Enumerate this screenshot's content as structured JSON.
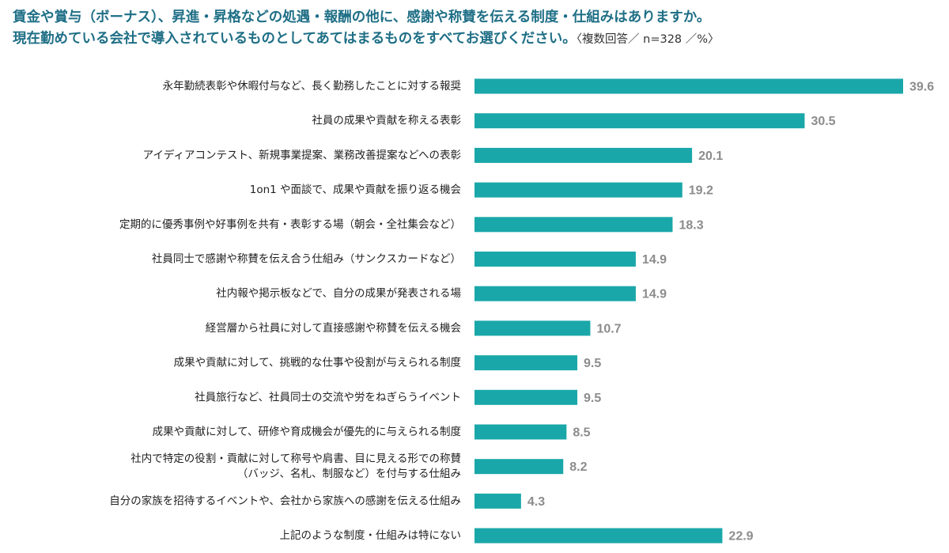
{
  "title": {
    "line1": "賃金や賞与（ボーナス）、昇進・昇格などの処遇・報酬の他に、感謝や称賛を伝える制度・仕組みはありますか。",
    "line2": "現在勤めている会社で導入されているものとしてあてはまるものをすべてお選びください。",
    "note": "〈複数回答／ n=328 ／%〉"
  },
  "colors": {
    "bar": "#1aa7a9",
    "value_text": "#8c8c8c",
    "label_text": "#222222",
    "title": "#1f6f86"
  },
  "chart_data": {
    "type": "bar",
    "orientation": "horizontal",
    "title": "賃金や賞与（ボーナス）、昇進・昇格などの処遇・報酬の他に、感謝や称賛を伝える制度・仕組みはありますか。 現在勤めている会社で導入されているものとしてあてはまるものをすべてお選びください。",
    "note": "〈複数回答／ n=328 ／%〉",
    "categories": [
      [
        "永年勤続表彰や休暇付与など、長く勤務したことに対する報奨"
      ],
      [
        "社員の成果や貢献を称える表彰"
      ],
      [
        "アイディアコンテスト、新規事業提案、業務改善提案などへの表彰"
      ],
      [
        "1on1 や面談で、成果や貢献を振り返る機会"
      ],
      [
        "定期的に優秀事例や好事例を共有・表彰する場（朝会・全社集会など）"
      ],
      [
        "社員同士で感謝や称賛を伝え合う仕組み（サンクスカードなど）"
      ],
      [
        "社内報や掲示板などで、自分の成果が発表される場"
      ],
      [
        "経営層から社員に対して直接感謝や称賛を伝える機会"
      ],
      [
        "成果や貢献に対して、挑戦的な仕事や役割が与えられる制度"
      ],
      [
        "社員旅行など、社員同士の交流や労をねぎらうイベント"
      ],
      [
        "成果や貢献に対して、研修や育成機会が優先的に与えられる制度"
      ],
      [
        "社内で特定の役割・貢献に対して称号や肩書、目に見える形での称賛",
        "（バッジ、名札、制服など）を付与する仕組み"
      ],
      [
        "自分の家族を招待するイベントや、会社から家族への感謝を伝える仕組み"
      ],
      [
        "上記のような制度・仕組みは特にない"
      ]
    ],
    "values": [
      39.6,
      30.5,
      20.1,
      19.2,
      18.3,
      14.9,
      14.9,
      10.7,
      9.5,
      9.5,
      8.5,
      8.2,
      4.3,
      22.9
    ],
    "value_labels": [
      "39.6",
      "30.5",
      "20.1",
      "19.2",
      "18.3",
      "14.9",
      "14.9",
      "10.7",
      "9.5",
      "9.5",
      "8.5",
      "8.2",
      "4.3",
      "22.9"
    ],
    "xlim": [
      0,
      39.6
    ],
    "grid": false,
    "legend": "none"
  }
}
